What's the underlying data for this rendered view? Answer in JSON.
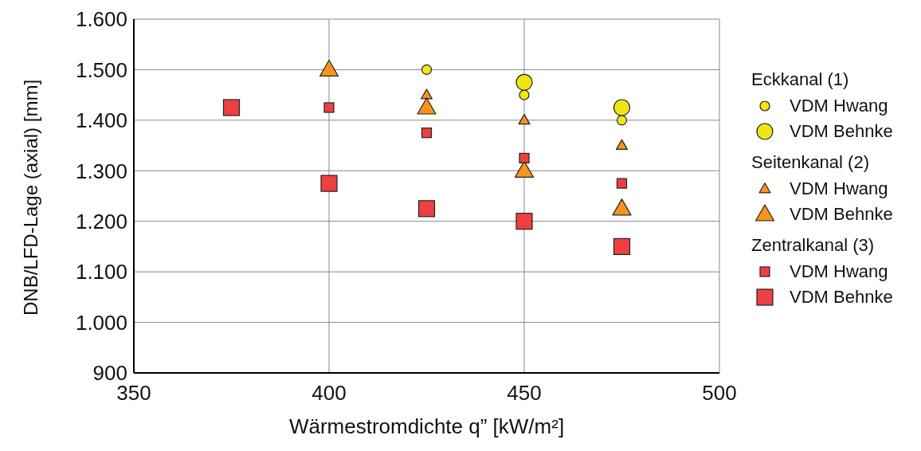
{
  "chart_data": {
    "type": "scatter",
    "xlabel": "Wärmestromdichte  q”  [kW/m²]",
    "ylabel": "DNB/LFD-Lage (axial) [mm]",
    "xlim": [
      350,
      500
    ],
    "xticks": [
      350,
      400,
      450,
      500
    ],
    "ylim": [
      900,
      1600
    ],
    "yticks": [
      {
        "value": 900,
        "label": "900"
      },
      {
        "value": 1000,
        "label": "1.000"
      },
      {
        "value": 1100,
        "label": "1.100"
      },
      {
        "value": 1200,
        "label": "1.200"
      },
      {
        "value": 1300,
        "label": "1.300"
      },
      {
        "value": 1400,
        "label": "1.400"
      },
      {
        "value": 1500,
        "label": "1.500"
      },
      {
        "value": 1600,
        "label": "1.600"
      }
    ],
    "grid": true,
    "legend": "right",
    "annotations": [
      "Eckkanal (1)",
      "Seitenkanal (2)",
      "Zentralkanal (3)"
    ],
    "series": [
      {
        "name": "VDM Hwang",
        "color": "#f0e614",
        "marker": "circle",
        "x": [
          425,
          450,
          475
        ],
        "values": [
          1500,
          1450,
          1400
        ]
      },
      {
        "name": "VDM Behnke",
        "color": "#f0e614",
        "marker": "circle",
        "x": [
          450,
          475
        ],
        "values": [
          1475,
          1425
        ]
      },
      {
        "name": "VDM Hwang",
        "color": "#f7941d",
        "marker": "triangle",
        "x": [
          425,
          450,
          475
        ],
        "values": [
          1450,
          1400,
          1350
        ]
      },
      {
        "name": "VDM Behnke",
        "color": "#f7941d",
        "marker": "triangle",
        "x": [
          400,
          425,
          450,
          475
        ],
        "values": [
          1500,
          1425,
          1300,
          1225
        ]
      },
      {
        "name": "VDM Hwang",
        "color": "#ee4040",
        "marker": "square",
        "x": [
          400,
          425,
          450,
          475
        ],
        "values": [
          1425,
          1375,
          1325,
          1275
        ]
      },
      {
        "name": "VDM Behnke",
        "color": "#ee4040",
        "marker": "square",
        "x": [
          375,
          400,
          425,
          450,
          475
        ],
        "values": [
          1425,
          1275,
          1225,
          1200,
          1150
        ]
      }
    ]
  }
}
